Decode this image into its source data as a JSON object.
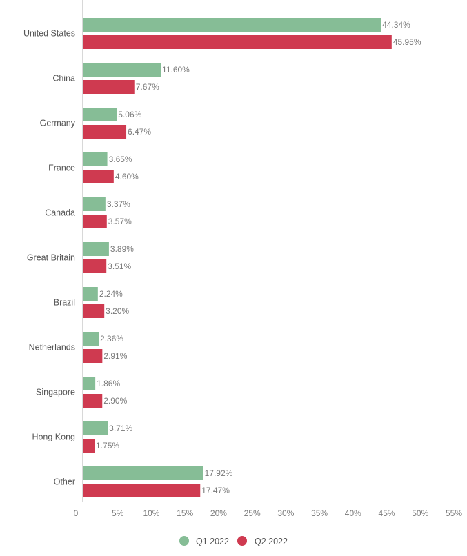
{
  "chart_data": {
    "type": "bar",
    "orientation": "horizontal",
    "categories": [
      "United States",
      "China",
      "Germany",
      "France",
      "Canada",
      "Great Britain",
      "Brazil",
      "Netherlands",
      "Singapore",
      "Hong Kong",
      "Other"
    ],
    "series": [
      {
        "name": "Q1 2022",
        "color": "#86bd96",
        "values": [
          44.34,
          11.6,
          5.06,
          3.65,
          3.37,
          3.89,
          2.24,
          2.36,
          1.86,
          3.71,
          17.92
        ],
        "labels": [
          "44.34%",
          "11.60%",
          "5.06%",
          "3.65%",
          "3.37%",
          "3.89%",
          "2.24%",
          "2.36%",
          "1.86%",
          "3.71%",
          "17.92%"
        ]
      },
      {
        "name": "Q2 2022",
        "color": "#cf3a50",
        "values": [
          45.95,
          7.67,
          6.47,
          4.6,
          3.57,
          3.51,
          3.2,
          2.91,
          2.9,
          1.75,
          17.47
        ],
        "labels": [
          "45.95%",
          "7.67%",
          "6.47%",
          "4.60%",
          "3.57%",
          "3.51%",
          "3.20%",
          "2.91%",
          "2.90%",
          "1.75%",
          "17.47%"
        ]
      }
    ],
    "x_ticks": [
      "0",
      "5%",
      "10%",
      "15%",
      "20%",
      "25%",
      "30%",
      "35%",
      "40%",
      "45%",
      "50%",
      "55%"
    ],
    "xlim": [
      0,
      55
    ],
    "grid": false,
    "legend": {
      "position": "bottom-center",
      "entries": [
        "Q1 2022",
        "Q2 2022"
      ]
    },
    "axis_color": "#d8d8d8"
  }
}
